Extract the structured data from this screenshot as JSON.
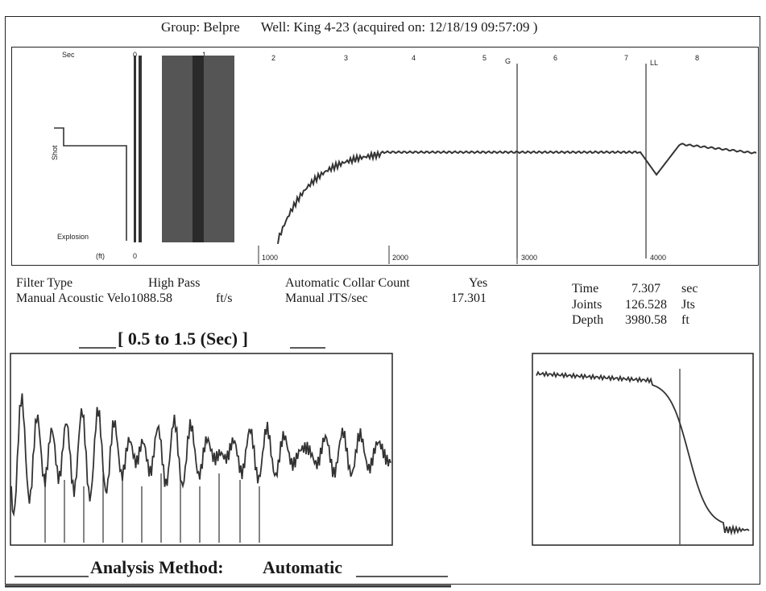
{
  "header": {
    "group": "Group: Belpre",
    "well": "Well: King 4-23 (acquired on: 12/18/19 09:57:09 )"
  },
  "main_plot": {
    "top_ticks": [
      "Sec",
      "0",
      "1",
      "2",
      "3",
      "4",
      "5",
      "6",
      "7",
      "8"
    ],
    "bottom_ticks": [
      "(ft)",
      "0",
      "1000",
      "2000",
      "3000",
      "4000"
    ],
    "left_label_top": "Shot",
    "left_label_bottom": "Explosion",
    "marker_left": "G",
    "marker_right": "LL"
  },
  "settings": {
    "filter_type_label": "Filter Type",
    "filter_type_value": "High Pass",
    "velocity_label": "Manual Acoustic Velo",
    "velocity_value": "1088.58",
    "velocity_unit": "ft/s",
    "collar_label": "Automatic Collar Count",
    "collar_value": "Yes",
    "jts_label": "Manual JTS/sec",
    "jts_value": "17.301"
  },
  "readout": {
    "time_label": "Time",
    "time_value": "7.307",
    "time_unit": "sec",
    "joints_label": "Joints",
    "joints_value": "126.528",
    "joints_unit": "Jts",
    "depth_label": "Depth",
    "depth_value": "3980.58",
    "depth_unit": "ft"
  },
  "range_title": "[ 0.5  to  1.5 (Sec) ]",
  "analysis": {
    "label": "Analysis Method:",
    "value": "Automatic"
  }
}
